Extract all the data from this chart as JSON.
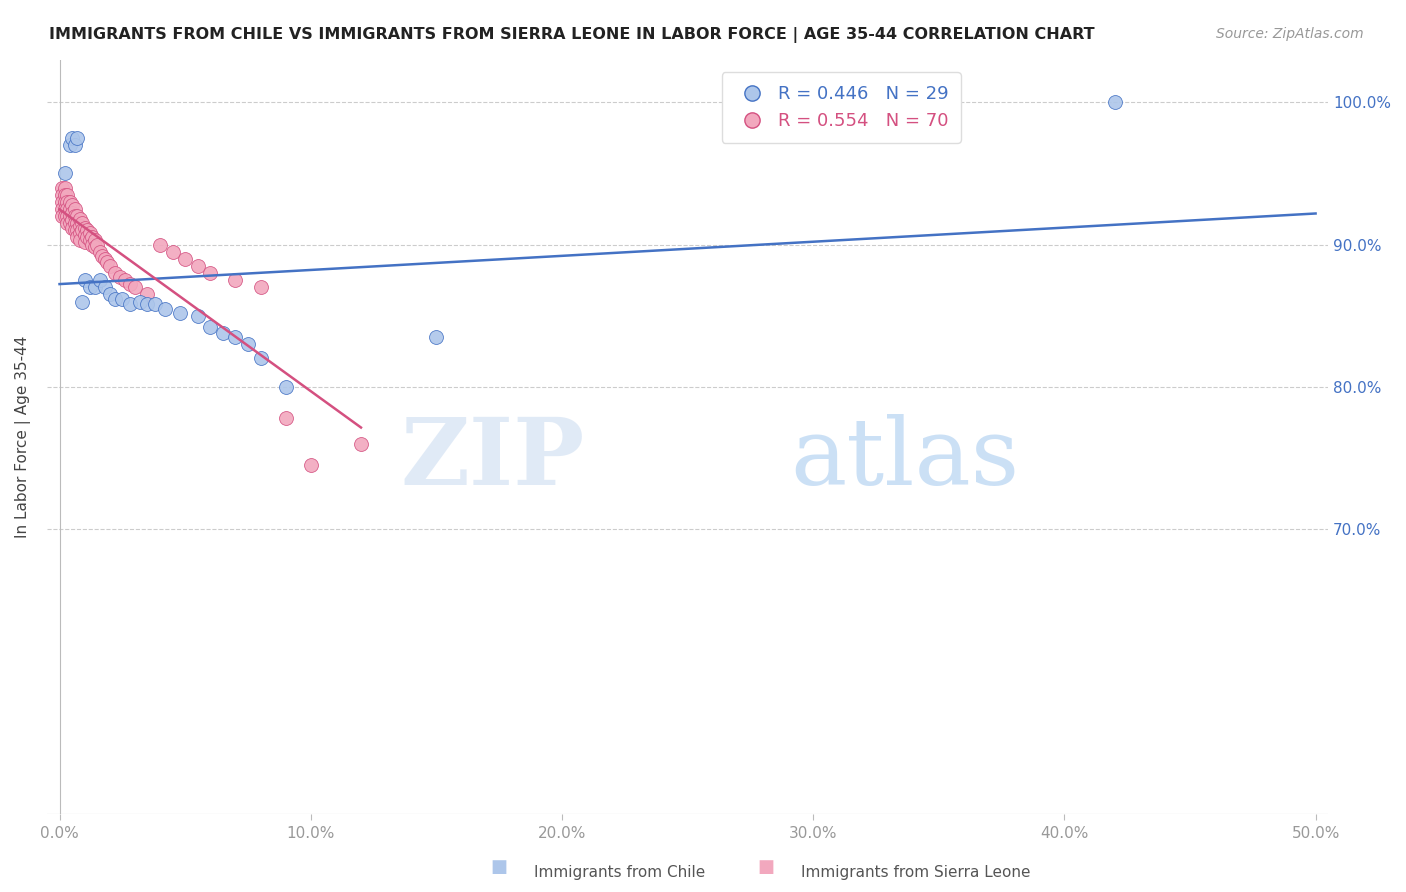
{
  "title": "IMMIGRANTS FROM CHILE VS IMMIGRANTS FROM SIERRA LEONE IN LABOR FORCE | AGE 35-44 CORRELATION CHART",
  "source": "Source: ZipAtlas.com",
  "ylabel": "In Labor Force | Age 35-44",
  "xlim": [
    -0.005,
    0.505
  ],
  "ylim": [
    0.5,
    1.03
  ],
  "xticks": [
    0.0,
    0.1,
    0.2,
    0.3,
    0.4,
    0.5
  ],
  "xtick_labels": [
    "0.0%",
    "10.0%",
    "20.0%",
    "30.0%",
    "40.0%",
    "50.0%"
  ],
  "ytick_values": [
    0.7,
    0.8,
    0.9,
    1.0
  ],
  "ytick_labels": [
    "70.0%",
    "80.0%",
    "90.0%",
    "100.0%"
  ],
  "chile_color": "#adc6ea",
  "sierra_leone_color": "#f2a8be",
  "chile_line_color": "#4472c4",
  "sierra_leone_line_color": "#d45080",
  "legend_chile_label": "R = 0.446   N = 29",
  "legend_sl_label": "R = 0.554   N = 70",
  "watermark_zip": "ZIP",
  "watermark_atlas": "atlas",
  "chile_x": [
    0.002,
    0.004,
    0.005,
    0.006,
    0.007,
    0.009,
    0.01,
    0.012,
    0.014,
    0.016,
    0.018,
    0.02,
    0.022,
    0.025,
    0.028,
    0.032,
    0.035,
    0.038,
    0.042,
    0.048,
    0.055,
    0.06,
    0.065,
    0.07,
    0.075,
    0.08,
    0.09,
    0.15,
    0.42
  ],
  "chile_y": [
    0.95,
    0.97,
    0.975,
    0.97,
    0.975,
    0.86,
    0.875,
    0.87,
    0.87,
    0.875,
    0.87,
    0.865,
    0.862,
    0.862,
    0.858,
    0.86,
    0.858,
    0.858,
    0.855,
    0.852,
    0.85,
    0.842,
    0.838,
    0.835,
    0.83,
    0.82,
    0.8,
    0.835,
    1.0
  ],
  "sl_x": [
    0.001,
    0.001,
    0.001,
    0.001,
    0.001,
    0.002,
    0.002,
    0.002,
    0.002,
    0.002,
    0.003,
    0.003,
    0.003,
    0.003,
    0.003,
    0.004,
    0.004,
    0.004,
    0.004,
    0.005,
    0.005,
    0.005,
    0.005,
    0.006,
    0.006,
    0.006,
    0.006,
    0.007,
    0.007,
    0.007,
    0.007,
    0.008,
    0.008,
    0.008,
    0.008,
    0.009,
    0.009,
    0.01,
    0.01,
    0.01,
    0.011,
    0.011,
    0.012,
    0.012,
    0.013,
    0.013,
    0.014,
    0.014,
    0.015,
    0.016,
    0.017,
    0.018,
    0.019,
    0.02,
    0.022,
    0.024,
    0.026,
    0.028,
    0.03,
    0.035,
    0.04,
    0.045,
    0.05,
    0.055,
    0.06,
    0.07,
    0.08,
    0.09,
    0.1,
    0.12
  ],
  "sl_y": [
    0.94,
    0.935,
    0.93,
    0.925,
    0.92,
    0.94,
    0.935,
    0.93,
    0.925,
    0.92,
    0.935,
    0.93,
    0.925,
    0.92,
    0.915,
    0.93,
    0.925,
    0.92,
    0.915,
    0.928,
    0.922,
    0.917,
    0.912,
    0.925,
    0.92,
    0.915,
    0.91,
    0.92,
    0.915,
    0.91,
    0.905,
    0.918,
    0.913,
    0.908,
    0.903,
    0.915,
    0.91,
    0.912,
    0.907,
    0.902,
    0.91,
    0.905,
    0.908,
    0.903,
    0.905,
    0.9,
    0.903,
    0.898,
    0.9,
    0.895,
    0.892,
    0.89,
    0.888,
    0.885,
    0.88,
    0.877,
    0.875,
    0.872,
    0.87,
    0.865,
    0.9,
    0.895,
    0.89,
    0.885,
    0.88,
    0.875,
    0.87,
    0.778,
    0.745,
    0.76
  ]
}
